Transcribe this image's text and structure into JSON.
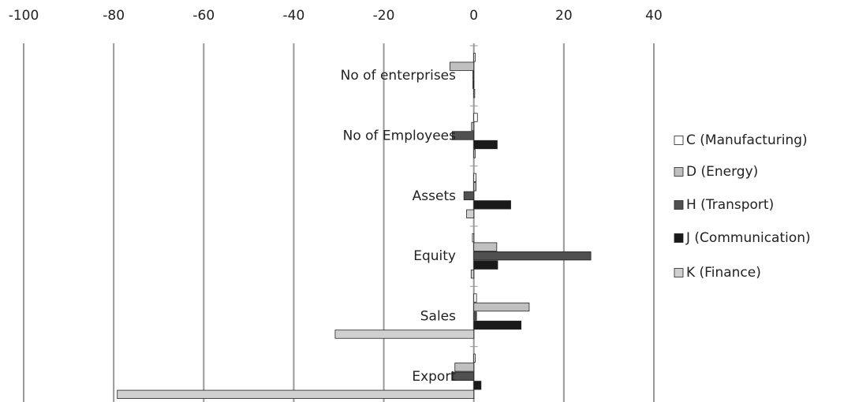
{
  "chart_data": {
    "type": "bar",
    "orientation": "horizontal",
    "categories": [
      "No of enterprises",
      "No of Employees",
      "Assets",
      "Equity",
      "Sales",
      "Export"
    ],
    "series": [
      {
        "name": "C (Manufacturing)",
        "color": "#ffffff",
        "values": [
          0.3,
          0.8,
          0.5,
          -0.3,
          0.6,
          0.3
        ]
      },
      {
        "name": "D (Energy)",
        "color": "#c0c0c0",
        "values": [
          -5.3,
          -0.5,
          0.5,
          5.1,
          12.3,
          -4.2
        ]
      },
      {
        "name": "H (Transport)",
        "color": "#505050",
        "values": [
          -0.2,
          -4.8,
          -2.2,
          26,
          0.6,
          -4.9
        ]
      },
      {
        "name": "J (Communication)",
        "color": "#1a1a1a",
        "values": [
          -0.2,
          5.2,
          8.2,
          5.3,
          10.5,
          1.6
        ]
      },
      {
        "name": "K (Finance)",
        "color": "#d0d0d0",
        "values": [
          0.2,
          0.3,
          -1.6,
          -0.6,
          -30.8,
          -79.2
        ]
      }
    ],
    "xlim": [
      -100,
      40
    ],
    "xticks": [
      -100,
      -80,
      -60,
      -40,
      -20,
      0,
      20,
      40
    ],
    "grid": true,
    "legend": "right"
  }
}
